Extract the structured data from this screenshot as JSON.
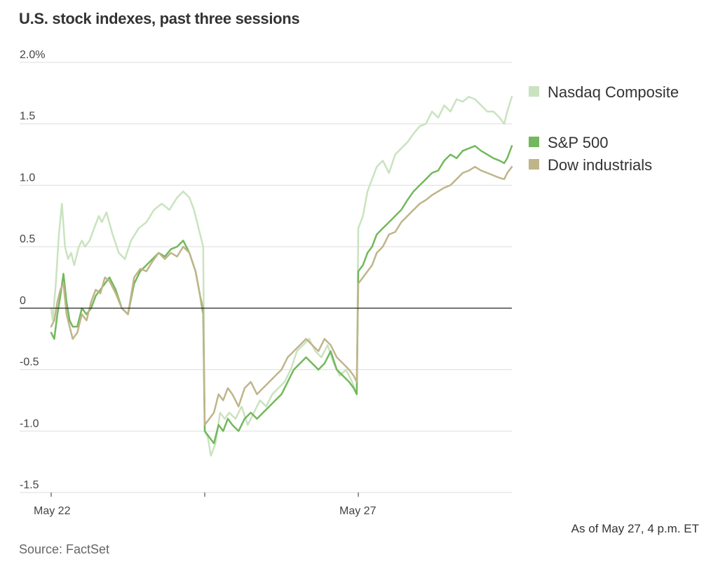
{
  "chart_data": {
    "type": "line",
    "title": "U.S. stock indexes, past three sessions",
    "xlabel": "",
    "ylabel": "",
    "note": "As of May 27, 4 p.m. ET",
    "source": "Source: FactSet",
    "ylim": [
      -1.5,
      2.0
    ],
    "y_ticks": [
      {
        "value": 2.0,
        "label": "2.0%"
      },
      {
        "value": 1.5,
        "label": "1.5"
      },
      {
        "value": 1.0,
        "label": "1.0"
      },
      {
        "value": 0.5,
        "label": "0.5"
      },
      {
        "value": 0.0,
        "label": "0"
      },
      {
        "value": -0.5,
        "label": "-0.5"
      },
      {
        "value": -1.0,
        "label": "-1.0"
      },
      {
        "value": -1.5,
        "label": "-1.5"
      }
    ],
    "x_ticks": [
      {
        "session": 0,
        "label": "May 22"
      },
      {
        "session": 1,
        "label": ""
      },
      {
        "session": 2,
        "label": "May 27"
      }
    ],
    "sessions": 3,
    "grid": true,
    "legend_position": "right",
    "series": [
      {
        "name": "Nasdaq Composite",
        "color": "#c9e3bf",
        "values": [
          [
            0,
            0.0
          ],
          [
            0.01,
            -0.1
          ],
          [
            0.03,
            0.2
          ],
          [
            0.05,
            0.6
          ],
          [
            0.07,
            0.85
          ],
          [
            0.09,
            0.5
          ],
          [
            0.11,
            0.4
          ],
          [
            0.13,
            0.45
          ],
          [
            0.15,
            0.35
          ],
          [
            0.18,
            0.5
          ],
          [
            0.2,
            0.55
          ],
          [
            0.22,
            0.5
          ],
          [
            0.25,
            0.55
          ],
          [
            0.28,
            0.65
          ],
          [
            0.31,
            0.75
          ],
          [
            0.33,
            0.7
          ],
          [
            0.36,
            0.78
          ],
          [
            0.4,
            0.6
          ],
          [
            0.44,
            0.45
          ],
          [
            0.48,
            0.4
          ],
          [
            0.52,
            0.55
          ],
          [
            0.57,
            0.65
          ],
          [
            0.62,
            0.7
          ],
          [
            0.67,
            0.8
          ],
          [
            0.72,
            0.85
          ],
          [
            0.77,
            0.8
          ],
          [
            0.82,
            0.9
          ],
          [
            0.86,
            0.95
          ],
          [
            0.9,
            0.9
          ],
          [
            0.93,
            0.8
          ],
          [
            0.96,
            0.65
          ],
          [
            0.99,
            0.5
          ],
          [
            1.0,
            -1.0
          ],
          [
            1.02,
            -1.05
          ],
          [
            1.04,
            -1.2
          ],
          [
            1.07,
            -1.1
          ],
          [
            1.1,
            -0.85
          ],
          [
            1.13,
            -0.9
          ],
          [
            1.16,
            -0.85
          ],
          [
            1.2,
            -0.9
          ],
          [
            1.24,
            -0.8
          ],
          [
            1.28,
            -0.95
          ],
          [
            1.32,
            -0.85
          ],
          [
            1.36,
            -0.75
          ],
          [
            1.4,
            -0.8
          ],
          [
            1.44,
            -0.7
          ],
          [
            1.48,
            -0.65
          ],
          [
            1.52,
            -0.6
          ],
          [
            1.56,
            -0.5
          ],
          [
            1.6,
            -0.35
          ],
          [
            1.64,
            -0.3
          ],
          [
            1.68,
            -0.25
          ],
          [
            1.72,
            -0.35
          ],
          [
            1.76,
            -0.4
          ],
          [
            1.8,
            -0.3
          ],
          [
            1.84,
            -0.45
          ],
          [
            1.88,
            -0.55
          ],
          [
            1.92,
            -0.5
          ],
          [
            1.96,
            -0.6
          ],
          [
            1.99,
            -0.7
          ],
          [
            2.0,
            0.65
          ],
          [
            2.03,
            0.75
          ],
          [
            2.06,
            0.95
          ],
          [
            2.09,
            1.05
          ],
          [
            2.12,
            1.15
          ],
          [
            2.16,
            1.2
          ],
          [
            2.2,
            1.1
          ],
          [
            2.24,
            1.25
          ],
          [
            2.28,
            1.3
          ],
          [
            2.32,
            1.35
          ],
          [
            2.36,
            1.42
          ],
          [
            2.4,
            1.48
          ],
          [
            2.44,
            1.5
          ],
          [
            2.48,
            1.6
          ],
          [
            2.52,
            1.55
          ],
          [
            2.56,
            1.65
          ],
          [
            2.6,
            1.6
          ],
          [
            2.64,
            1.7
          ],
          [
            2.68,
            1.68
          ],
          [
            2.72,
            1.72
          ],
          [
            2.76,
            1.7
          ],
          [
            2.8,
            1.65
          ],
          [
            2.84,
            1.6
          ],
          [
            2.88,
            1.6
          ],
          [
            2.92,
            1.55
          ],
          [
            2.95,
            1.5
          ],
          [
            2.97,
            1.6
          ],
          [
            3.0,
            1.72
          ]
        ]
      },
      {
        "name": "S&P 500",
        "color": "#73b85c",
        "values": [
          [
            0,
            -0.2
          ],
          [
            0.02,
            -0.25
          ],
          [
            0.04,
            -0.05
          ],
          [
            0.06,
            0.1
          ],
          [
            0.08,
            0.28
          ],
          [
            0.1,
            0.05
          ],
          [
            0.12,
            -0.1
          ],
          [
            0.14,
            -0.15
          ],
          [
            0.17,
            -0.15
          ],
          [
            0.2,
            0.0
          ],
          [
            0.23,
            -0.05
          ],
          [
            0.26,
            0.0
          ],
          [
            0.29,
            0.1
          ],
          [
            0.32,
            0.15
          ],
          [
            0.35,
            0.2
          ],
          [
            0.38,
            0.25
          ],
          [
            0.42,
            0.15
          ],
          [
            0.46,
            0.0
          ],
          [
            0.5,
            -0.05
          ],
          [
            0.54,
            0.2
          ],
          [
            0.58,
            0.3
          ],
          [
            0.62,
            0.35
          ],
          [
            0.66,
            0.4
          ],
          [
            0.7,
            0.45
          ],
          [
            0.74,
            0.42
          ],
          [
            0.78,
            0.48
          ],
          [
            0.82,
            0.5
          ],
          [
            0.86,
            0.55
          ],
          [
            0.9,
            0.45
          ],
          [
            0.94,
            0.3
          ],
          [
            0.97,
            0.1
          ],
          [
            0.99,
            -0.05
          ],
          [
            1.0,
            -1.0
          ],
          [
            1.03,
            -1.05
          ],
          [
            1.06,
            -1.1
          ],
          [
            1.09,
            -0.95
          ],
          [
            1.12,
            -1.0
          ],
          [
            1.15,
            -0.9
          ],
          [
            1.18,
            -0.95
          ],
          [
            1.22,
            -1.0
          ],
          [
            1.26,
            -0.9
          ],
          [
            1.3,
            -0.85
          ],
          [
            1.34,
            -0.9
          ],
          [
            1.38,
            -0.85
          ],
          [
            1.42,
            -0.8
          ],
          [
            1.46,
            -0.75
          ],
          [
            1.5,
            -0.7
          ],
          [
            1.54,
            -0.6
          ],
          [
            1.58,
            -0.5
          ],
          [
            1.62,
            -0.45
          ],
          [
            1.66,
            -0.4
          ],
          [
            1.7,
            -0.45
          ],
          [
            1.74,
            -0.5
          ],
          [
            1.78,
            -0.45
          ],
          [
            1.82,
            -0.35
          ],
          [
            1.86,
            -0.5
          ],
          [
            1.9,
            -0.55
          ],
          [
            1.94,
            -0.6
          ],
          [
            1.97,
            -0.65
          ],
          [
            1.99,
            -0.7
          ],
          [
            2.0,
            0.3
          ],
          [
            2.03,
            0.35
          ],
          [
            2.06,
            0.45
          ],
          [
            2.09,
            0.5
          ],
          [
            2.12,
            0.6
          ],
          [
            2.16,
            0.65
          ],
          [
            2.2,
            0.7
          ],
          [
            2.24,
            0.75
          ],
          [
            2.28,
            0.8
          ],
          [
            2.32,
            0.88
          ],
          [
            2.36,
            0.95
          ],
          [
            2.4,
            1.0
          ],
          [
            2.44,
            1.05
          ],
          [
            2.48,
            1.1
          ],
          [
            2.52,
            1.12
          ],
          [
            2.56,
            1.2
          ],
          [
            2.6,
            1.25
          ],
          [
            2.64,
            1.22
          ],
          [
            2.68,
            1.28
          ],
          [
            2.72,
            1.3
          ],
          [
            2.76,
            1.32
          ],
          [
            2.8,
            1.28
          ],
          [
            2.84,
            1.25
          ],
          [
            2.88,
            1.22
          ],
          [
            2.92,
            1.2
          ],
          [
            2.95,
            1.18
          ],
          [
            2.97,
            1.22
          ],
          [
            3.0,
            1.32
          ]
        ]
      },
      {
        "name": "Dow industrials",
        "color": "#bfb58a",
        "values": [
          [
            0,
            -0.15
          ],
          [
            0.02,
            -0.1
          ],
          [
            0.04,
            0.05
          ],
          [
            0.06,
            0.15
          ],
          [
            0.08,
            0.2
          ],
          [
            0.1,
            -0.05
          ],
          [
            0.12,
            -0.15
          ],
          [
            0.14,
            -0.25
          ],
          [
            0.17,
            -0.2
          ],
          [
            0.2,
            -0.05
          ],
          [
            0.23,
            -0.1
          ],
          [
            0.26,
            0.05
          ],
          [
            0.29,
            0.15
          ],
          [
            0.32,
            0.12
          ],
          [
            0.35,
            0.25
          ],
          [
            0.38,
            0.22
          ],
          [
            0.42,
            0.12
          ],
          [
            0.46,
            0.0
          ],
          [
            0.5,
            -0.05
          ],
          [
            0.54,
            0.25
          ],
          [
            0.58,
            0.32
          ],
          [
            0.62,
            0.3
          ],
          [
            0.66,
            0.38
          ],
          [
            0.7,
            0.45
          ],
          [
            0.74,
            0.4
          ],
          [
            0.78,
            0.45
          ],
          [
            0.82,
            0.42
          ],
          [
            0.86,
            0.5
          ],
          [
            0.9,
            0.45
          ],
          [
            0.94,
            0.3
          ],
          [
            0.97,
            0.1
          ],
          [
            0.99,
            0.0
          ],
          [
            1.0,
            -0.95
          ],
          [
            1.03,
            -0.9
          ],
          [
            1.06,
            -0.85
          ],
          [
            1.09,
            -0.7
          ],
          [
            1.12,
            -0.75
          ],
          [
            1.15,
            -0.65
          ],
          [
            1.18,
            -0.7
          ],
          [
            1.22,
            -0.8
          ],
          [
            1.26,
            -0.65
          ],
          [
            1.3,
            -0.6
          ],
          [
            1.34,
            -0.7
          ],
          [
            1.38,
            -0.65
          ],
          [
            1.42,
            -0.6
          ],
          [
            1.46,
            -0.55
          ],
          [
            1.5,
            -0.5
          ],
          [
            1.54,
            -0.4
          ],
          [
            1.58,
            -0.35
          ],
          [
            1.62,
            -0.3
          ],
          [
            1.66,
            -0.25
          ],
          [
            1.7,
            -0.3
          ],
          [
            1.74,
            -0.35
          ],
          [
            1.78,
            -0.25
          ],
          [
            1.82,
            -0.3
          ],
          [
            1.86,
            -0.4
          ],
          [
            1.9,
            -0.45
          ],
          [
            1.94,
            -0.5
          ],
          [
            1.97,
            -0.55
          ],
          [
            1.99,
            -0.6
          ],
          [
            2.0,
            0.2
          ],
          [
            2.03,
            0.25
          ],
          [
            2.06,
            0.3
          ],
          [
            2.09,
            0.35
          ],
          [
            2.12,
            0.45
          ],
          [
            2.16,
            0.5
          ],
          [
            2.2,
            0.6
          ],
          [
            2.24,
            0.62
          ],
          [
            2.28,
            0.7
          ],
          [
            2.32,
            0.75
          ],
          [
            2.36,
            0.8
          ],
          [
            2.4,
            0.85
          ],
          [
            2.44,
            0.88
          ],
          [
            2.48,
            0.92
          ],
          [
            2.52,
            0.95
          ],
          [
            2.56,
            0.98
          ],
          [
            2.6,
            1.0
          ],
          [
            2.64,
            1.05
          ],
          [
            2.68,
            1.1
          ],
          [
            2.72,
            1.12
          ],
          [
            2.76,
            1.15
          ],
          [
            2.8,
            1.12
          ],
          [
            2.84,
            1.1
          ],
          [
            2.88,
            1.08
          ],
          [
            2.92,
            1.06
          ],
          [
            2.95,
            1.05
          ],
          [
            2.97,
            1.1
          ],
          [
            3.0,
            1.15
          ]
        ]
      }
    ]
  }
}
